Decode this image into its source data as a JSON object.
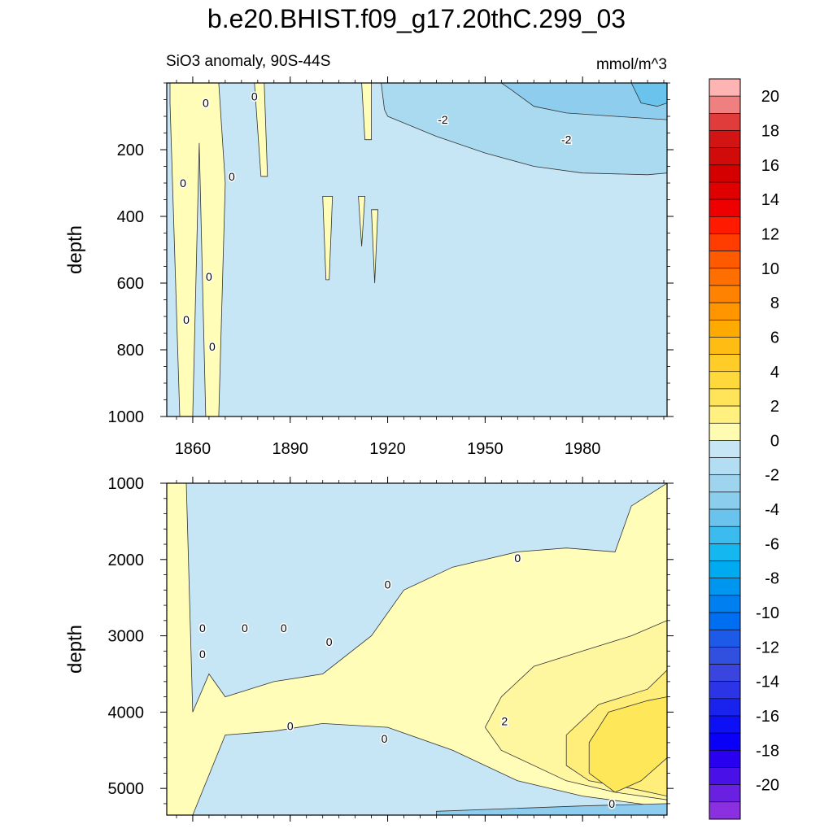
{
  "title": "b.e20.BHIST.f09_g17.20thC.299_03",
  "subtitle_left": "SiO3 anomaly, 90S-44S",
  "subtitle_right": "mmol/m^3",
  "colors": {
    "background": "#c6e5f5",
    "pos1": "#fffdb8",
    "pos2": "#fff6a0",
    "pos3": "#ffef7a",
    "pos4": "#ffe75a",
    "neg1": "#c6e5f5",
    "neg2": "#a9daf0",
    "neg3": "#8ecdee",
    "neg4": "#6ac3ec"
  },
  "chart_data": [
    {
      "type": "heatmap",
      "name": "upper",
      "x_tick_labels": [
        "1860",
        "1890",
        "1920",
        "1950",
        "1980"
      ],
      "x_ticks": [
        1860,
        1890,
        1920,
        1950,
        1980
      ],
      "xlim": [
        1852,
        2006
      ],
      "ylabel": "depth",
      "ylim": [
        1000,
        0
      ],
      "y_ticks": [
        200,
        400,
        600,
        800,
        1000
      ],
      "y_tick_labels": [
        "200",
        "400",
        "600",
        "800",
        "1000"
      ],
      "regions": [
        {
          "level": -1,
          "points": [
            [
              1920,
              100
            ],
            [
              1935,
              160
            ],
            [
              1950,
              210
            ],
            [
              1965,
              250
            ],
            [
              1980,
              270
            ],
            [
              2000,
              275
            ],
            [
              2006,
              270
            ],
            [
              2006,
              0
            ],
            [
              1918,
              0
            ],
            [
              1919,
              80
            ]
          ]
        },
        {
          "level": -2,
          "points": [
            [
              1958,
              20
            ],
            [
              1965,
              70
            ],
            [
              1975,
              90
            ],
            [
              1990,
              100
            ],
            [
              2006,
              110
            ],
            [
              2006,
              0
            ],
            [
              1955,
              0
            ]
          ]
        },
        {
          "level": -3,
          "points": [
            [
              1995,
              0
            ],
            [
              1998,
              60
            ],
            [
              2003,
              70
            ],
            [
              2006,
              60
            ],
            [
              2006,
              0
            ]
          ]
        },
        {
          "level": 1,
          "points": [
            [
              1853,
              60
            ],
            [
              1856,
              1000
            ],
            [
              1860,
              1000
            ],
            [
              1862,
              180
            ],
            [
              1864,
              1000
            ],
            [
              1868,
              1000
            ],
            [
              1870,
              300
            ],
            [
              1868,
              0
            ],
            [
              1853,
              0
            ]
          ]
        },
        {
          "level": 1,
          "points": [
            [
              1879,
              0
            ],
            [
              1881,
              280
            ],
            [
              1883,
              280
            ],
            [
              1882,
              0
            ]
          ]
        },
        {
          "level": 1,
          "points": [
            [
              1900,
              340
            ],
            [
              1901,
              590
            ],
            [
              1902,
              590
            ],
            [
              1903,
              340
            ]
          ]
        },
        {
          "level": 1,
          "points": [
            [
              1911,
              340
            ],
            [
              1912,
              490
            ],
            [
              1913,
              340
            ]
          ]
        },
        {
          "level": 1,
          "points": [
            [
              1915,
              380
            ],
            [
              1916,
              600
            ],
            [
              1917,
              380
            ]
          ]
        },
        {
          "level": 1,
          "points": [
            [
              1912,
              0
            ],
            [
              1913,
              170
            ],
            [
              1915,
              170
            ],
            [
              1915,
              0
            ]
          ]
        }
      ],
      "contour_labels": [
        {
          "text": "0",
          "x": 1864,
          "y": 60
        },
        {
          "text": "0",
          "x": 1879,
          "y": 40
        },
        {
          "text": "0",
          "x": 1857,
          "y": 300
        },
        {
          "text": "0",
          "x": 1872,
          "y": 280
        },
        {
          "text": "0",
          "x": 1865,
          "y": 580
        },
        {
          "text": "0",
          "x": 1858,
          "y": 710
        },
        {
          "text": "0",
          "x": 1866,
          "y": 790
        },
        {
          "text": "-2",
          "x": 1937,
          "y": 110
        },
        {
          "text": "-2",
          "x": 1975,
          "y": 170
        }
      ]
    },
    {
      "type": "heatmap",
      "name": "lower",
      "x_tick_labels": [],
      "x_ticks": [
        1860,
        1890,
        1920,
        1950,
        1980
      ],
      "xlim": [
        1852,
        2006
      ],
      "ylabel": "depth",
      "ylim": [
        5350,
        1000
      ],
      "y_ticks": [
        1000,
        2000,
        3000,
        4000,
        5000
      ],
      "y_tick_labels": [
        "1000",
        "2000",
        "3000",
        "4000",
        "5000"
      ],
      "regions": [
        {
          "level": 1,
          "points": [
            [
              1852,
              1000
            ],
            [
              1858,
              1000
            ],
            [
              1860,
              4000
            ],
            [
              1865,
              3500
            ],
            [
              1870,
              3800
            ],
            [
              1885,
              3600
            ],
            [
              1900,
              3500
            ],
            [
              1915,
              3000
            ],
            [
              1925,
              2400
            ],
            [
              1940,
              2100
            ],
            [
              1960,
              1900
            ],
            [
              1975,
              1850
            ],
            [
              1990,
              1900
            ],
            [
              1995,
              1300
            ],
            [
              2006,
              1000
            ],
            [
              2006,
              5250
            ],
            [
              1980,
              5100
            ],
            [
              1960,
              4900
            ],
            [
              1940,
              4500
            ],
            [
              1920,
              4200
            ],
            [
              1900,
              4150
            ],
            [
              1885,
              4250
            ],
            [
              1870,
              4300
            ],
            [
              1860,
              5350
            ],
            [
              1852,
              5350
            ]
          ]
        },
        {
          "level": 2,
          "points": [
            [
              1955,
              3800
            ],
            [
              1965,
              3400
            ],
            [
              1980,
              3200
            ],
            [
              1995,
              3000
            ],
            [
              2006,
              2800
            ],
            [
              2006,
              5150
            ],
            [
              1990,
              5050
            ],
            [
              1975,
              4900
            ],
            [
              1955,
              4500
            ],
            [
              1950,
              4200
            ]
          ]
        },
        {
          "level": 3,
          "points": [
            [
              1975,
              4300
            ],
            [
              1985,
              3900
            ],
            [
              2000,
              3700
            ],
            [
              2006,
              3450
            ],
            [
              2006,
              5100
            ],
            [
              1995,
              5000
            ],
            [
              1982,
              4900
            ],
            [
              1975,
              4700
            ]
          ]
        },
        {
          "level": 4,
          "points": [
            [
              1982,
              4400
            ],
            [
              1988,
              4000
            ],
            [
              2000,
              3850
            ],
            [
              2006,
              3800
            ],
            [
              2006,
              4600
            ],
            [
              1998,
              4900
            ],
            [
              1990,
              5050
            ],
            [
              1982,
              4800
            ]
          ]
        },
        {
          "level": -2,
          "points": [
            [
              1935,
              5300
            ],
            [
              1980,
              5230
            ],
            [
              2006,
              5200
            ],
            [
              2006,
              5350
            ],
            [
              1935,
              5350
            ]
          ]
        }
      ],
      "contour_labels": [
        {
          "text": "0",
          "x": 1863,
          "y": 2900
        },
        {
          "text": "0",
          "x": 1876,
          "y": 2900
        },
        {
          "text": "0",
          "x": 1888,
          "y": 2900
        },
        {
          "text": "0",
          "x": 1863,
          "y": 3240
        },
        {
          "text": "0",
          "x": 1902,
          "y": 3080
        },
        {
          "text": "0",
          "x": 1920,
          "y": 2330
        },
        {
          "text": "0",
          "x": 1960,
          "y": 1980
        },
        {
          "text": "0",
          "x": 1890,
          "y": 4180
        },
        {
          "text": "0",
          "x": 1919,
          "y": 4350
        },
        {
          "text": "2",
          "x": 1956,
          "y": 4120
        },
        {
          "text": "0",
          "x": 1989,
          "y": 5200
        }
      ]
    },
    {
      "type": "colorbar",
      "name": "colorbar",
      "levels": [
        21,
        20,
        19,
        18,
        17,
        16,
        15,
        14,
        13,
        12,
        11,
        10,
        9,
        8,
        7,
        6,
        5,
        4,
        3,
        2,
        1,
        0,
        -1,
        -2,
        -3,
        -4,
        -5,
        -6,
        -7,
        -8,
        -9,
        -10,
        -11,
        -12,
        -13,
        -14,
        -15,
        -16,
        -17,
        -18,
        -19,
        -20,
        -21
      ],
      "colors": [
        "#ffb4b4",
        "#f08080",
        "#e03c3c",
        "#d21414",
        "#d10a0a",
        "#d40000",
        "#e00000",
        "#ee0000",
        "#ff1a00",
        "#ff3d00",
        "#ff5a00",
        "#ff6e00",
        "#ff8200",
        "#ff9600",
        "#ffaa00",
        "#ffbd14",
        "#ffcc28",
        "#ffd93c",
        "#ffe45a",
        "#fff080",
        "#fffbb0",
        "#c6e5f5",
        "#b3ddf2",
        "#9fd4ef",
        "#8bcded",
        "#6ac3ec",
        "#3cbcee",
        "#14b7f0",
        "#00aaf0",
        "#0096f0",
        "#0080f0",
        "#006ef0",
        "#1e5ae8",
        "#3250e0",
        "#3a44de",
        "#2b34e6",
        "#1a22ee",
        "#0d10f4",
        "#0a00f8",
        "#2a00f0",
        "#4a10e8",
        "#6a20e0",
        "#8a30e0"
      ],
      "labels": [
        "20",
        "18",
        "16",
        "14",
        "12",
        "10",
        "8",
        "6",
        "4",
        "2",
        "0",
        "-2",
        "-4",
        "-6",
        "-8",
        "-10",
        "-12",
        "-14",
        "-16",
        "-18",
        "-20"
      ]
    }
  ]
}
